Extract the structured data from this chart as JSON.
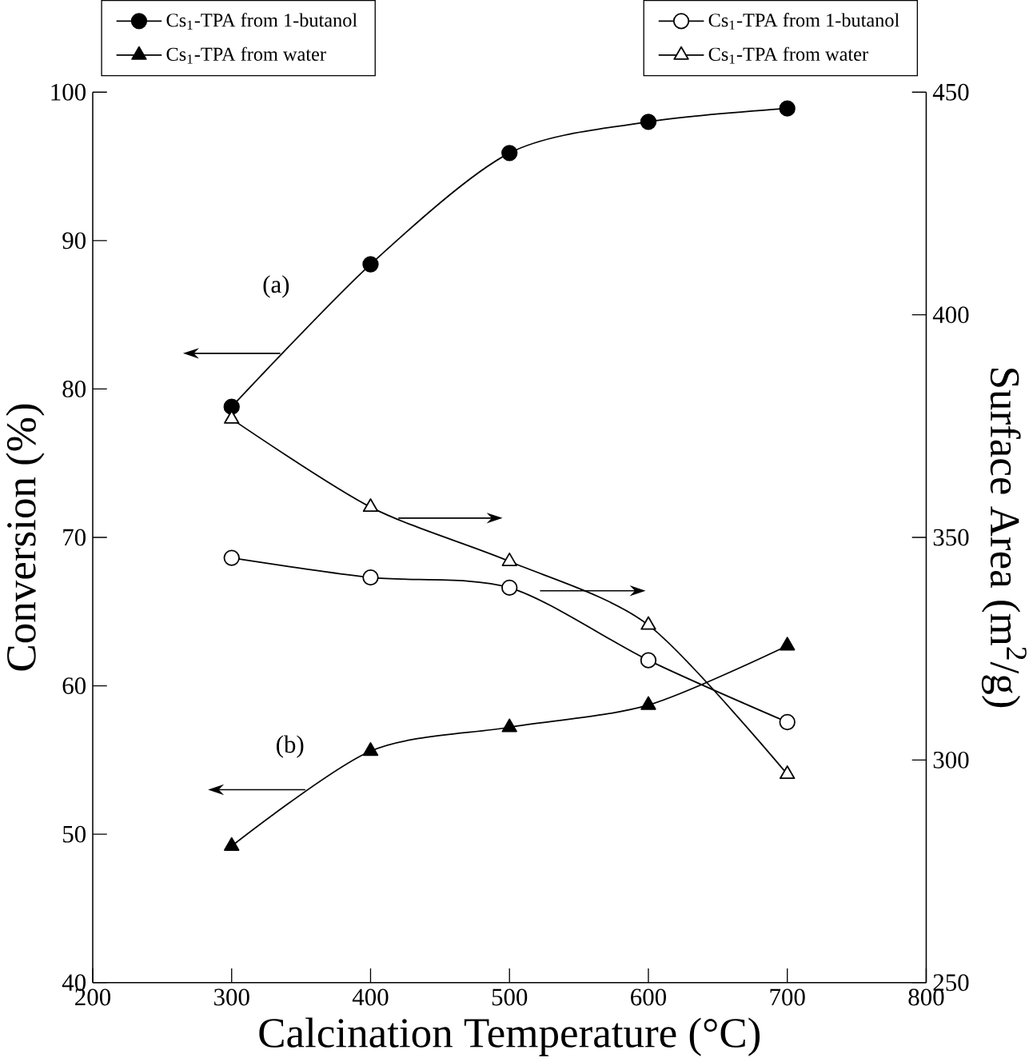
{
  "chart_data": {
    "type": "line",
    "xlabel": "Calcination Temperature (°C)",
    "ylabel": "Conversion (%)",
    "y2label": "Surface Area (m$^{2}$/g)",
    "x": [
      300,
      400,
      500,
      600,
      700
    ],
    "series": [
      {
        "name": "Cs$_{1}$-TPA from 1-butanol",
        "color": "#000000",
        "marker": "circle",
        "values": [
          78.8,
          88.4,
          95.9,
          98.0,
          98.9
        ]
      },
      {
        "name": "Cs$_{1}$-TPA from water",
        "color": "#000000",
        "marker": "triangle",
        "values": [
          49.2,
          55.6,
          57.2,
          58.7,
          62.7
        ]
      },
      {
        "name": "Cs$_{1}$-TPA from 1-butanol",
        "color": "#000000",
        "marker": "circle",
        "axis": "y2",
        "values": [
          345.4,
          341.0,
          338.7,
          322.4,
          308.5
        ]
      },
      {
        "name": "Cs$_{1}$-TPA from water",
        "color": "#000000",
        "marker": "triangle",
        "axis": "y2",
        "values": [
          376.6,
          356.8,
          344.6,
          330.3,
          296.8
        ]
      }
    ],
    "xlim": [
      200,
      800
    ],
    "xticks": [
      200,
      300,
      400,
      500,
      600,
      700,
      800
    ],
    "ylim": [
      40,
      100
    ],
    "yticks": [
      40,
      50,
      60,
      70,
      80,
      90,
      100
    ],
    "y2lim": [
      250,
      450
    ],
    "y2ticks": [
      250,
      300,
      350,
      400,
      450
    ],
    "annotations": [
      "(a)",
      "(b)"
    ],
    "grid": false,
    "legend": "top",
    "line_style": "solid"
  }
}
